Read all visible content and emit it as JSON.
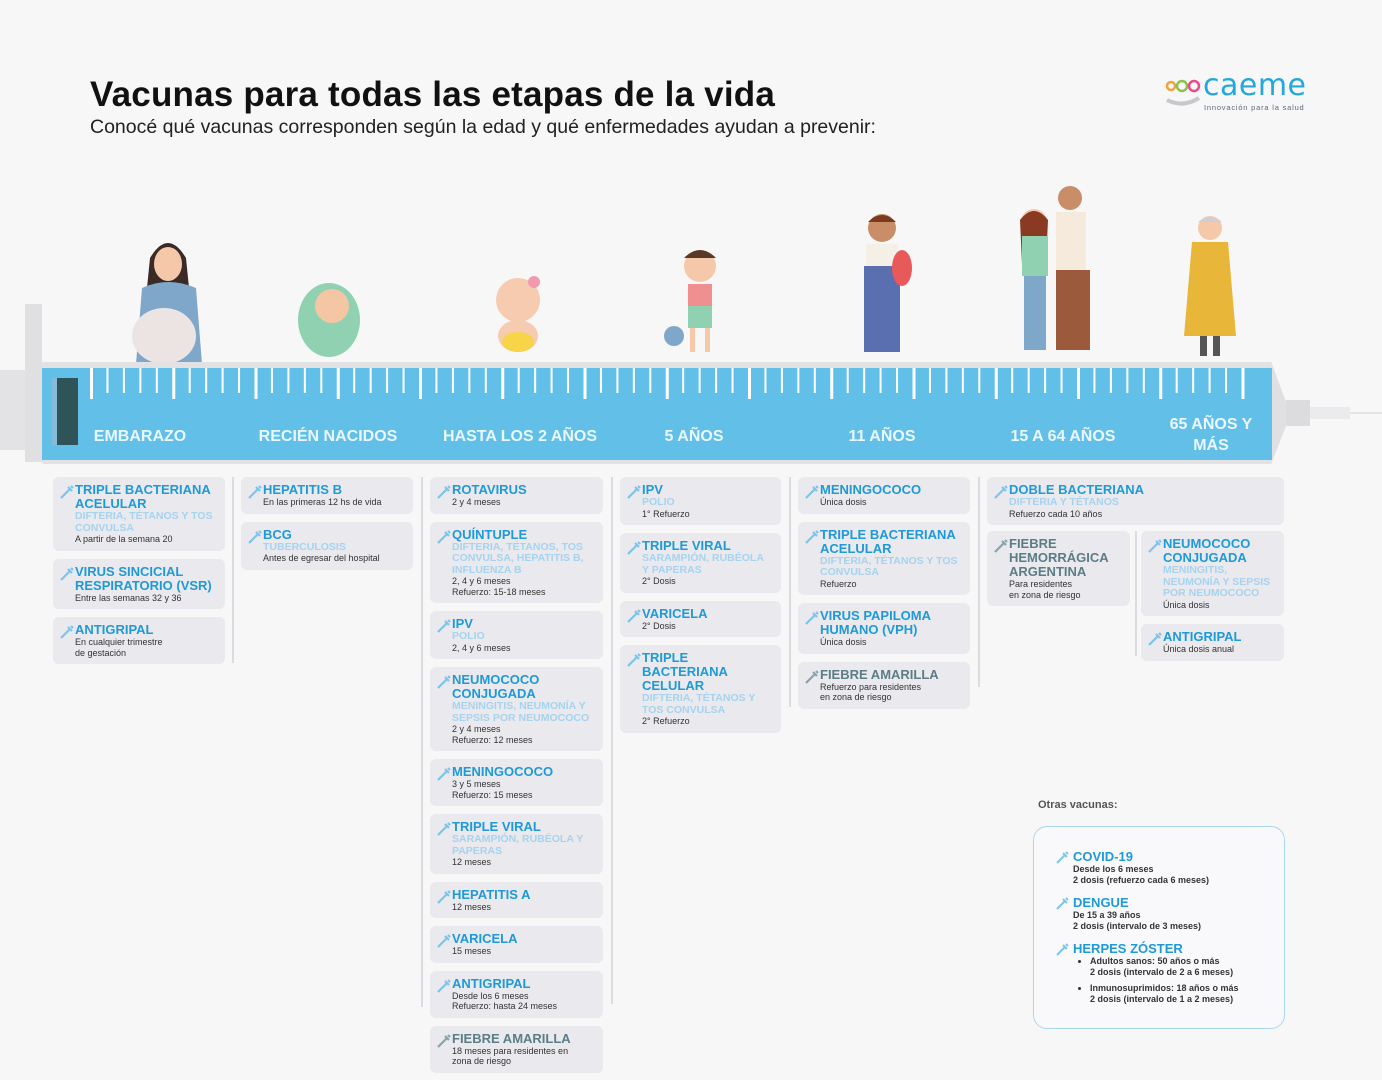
{
  "header": {
    "title": "Vacunas para todas las etapas de la vida",
    "subtitle": "Conocé qué vacunas corresponden según la edad y qué enfermedades ayudan a prevenir:"
  },
  "logo": {
    "text": "caeme",
    "tagline": "Innovación para la salud"
  },
  "colors": {
    "accent": "#1f9ad6",
    "syringe": "#62c0e8",
    "card": "#e9e9ee",
    "disease": "#a6d3ee",
    "muted_title": "#5c7d86"
  },
  "stages": [
    "EMBARAZO",
    "RECIÉN NACIDOS",
    "HASTA LOS 2 AÑOS",
    "5 AÑOS",
    "11 AÑOS",
    "15 A 64 AÑOS",
    "65 AÑOS Y MÁS"
  ],
  "columns": [
    {
      "cards": [
        {
          "title": "Triple bacteriana acelular",
          "disease": "Difteria, tétanos y tos convulsa",
          "detail": "A partir de la semana 20"
        },
        {
          "title": "Virus sincicial respiratorio (VSR)",
          "detail": "Entre las semanas 32 y 36"
        },
        {
          "title": "Antigripal",
          "detail": "En cualquier trimestre\nde gestación"
        }
      ]
    },
    {
      "cards": [
        {
          "title": "Hepatitis B",
          "detail": "En las primeras 12 hs de vida"
        },
        {
          "title": "BCG",
          "disease": "Tuberculosis",
          "detail": "Antes de egresar del hospital"
        }
      ]
    },
    {
      "cards": [
        {
          "title": "Rotavirus",
          "detail": "2 y 4 meses"
        },
        {
          "title": "Quíntuple",
          "disease": "Difteria, tétanos, tos convulsa, hepatitis B, influenza B",
          "detail": "2, 4 y 6 meses\nRefuerzo: 15-18 meses"
        },
        {
          "title": "IPV",
          "disease": "Polio",
          "detail": "2, 4 y 6 meses"
        },
        {
          "title": "Neumococo conjugada",
          "disease": "Meningitis, neumonía y sepsis por neumococo",
          "detail": "2 y 4 meses\nRefuerzo: 12 meses"
        },
        {
          "title": "Meningococo",
          "detail": "3 y 5 meses\nRefuerzo: 15 meses"
        },
        {
          "title": "Triple viral",
          "disease": "Sarampión, rubéola y paperas",
          "detail": "12 meses"
        },
        {
          "title": "Hepatitis A",
          "detail": "12 meses"
        },
        {
          "title": "Varicela",
          "detail": "15 meses"
        },
        {
          "title": "Antigripal",
          "detail": "Desde los 6 meses\nRefuerzo: hasta 24 meses"
        },
        {
          "title": "Fiebre amarilla",
          "detail": "18 meses para residentes en\nzona de riesgo",
          "muted": true
        }
      ]
    },
    {
      "cards": [
        {
          "title": "IPV",
          "disease": "Polio",
          "detail": "1° Refuerzo"
        },
        {
          "title": "Triple viral",
          "disease": "Sarampión, rubéola y paperas",
          "detail": "2° Dosis"
        },
        {
          "title": "Varicela",
          "detail": "2° Dosis"
        },
        {
          "title": "Triple bacteriana celular",
          "disease": "Difteria, tétanos y tos convulsa",
          "detail": "2° Refuerzo"
        }
      ]
    },
    {
      "cards": [
        {
          "title": "Meningococo",
          "detail": "Única dosis"
        },
        {
          "title": "Triple bacteriana acelular",
          "disease": "Difteria, tétanos y tos convulsa",
          "detail": "Refuerzo"
        },
        {
          "title": "Virus papiloma humano (VPH)",
          "detail": "Única dosis"
        },
        {
          "title": "Fiebre amarilla",
          "detail": "Refuerzo para residentes\nen zona de riesgo",
          "muted": true
        }
      ]
    },
    {
      "cards": [
        {
          "title": "Doble bacteriana",
          "disease": "Difteria y tétanos",
          "detail": "Refuerzo cada 10 años"
        }
      ]
    },
    {
      "cards": [
        {
          "title": "Fiebre hemorrágica argentina",
          "detail": "Para residentes\nen zona de riesgo",
          "muted": true
        }
      ]
    },
    {
      "cards": [
        {
          "title": "Neumococo conjugada",
          "disease": "Meningitis, neumonía y sepsis por neumococo",
          "detail": "Única dosis"
        },
        {
          "title": "Antigripal",
          "detail": "Única dosis anual"
        }
      ]
    }
  ],
  "others": {
    "label": "Otras vacunas:",
    "covid": {
      "title": "COVID-19",
      "detail": "Desde los 6 meses\n2 dosis (refuerzo cada 6 meses)"
    },
    "dengue": {
      "title": "DENGUE",
      "detail": "De 15 a 39 años\n2 dosis (intervalo de 3 meses)"
    },
    "herpes": {
      "title": "HERPES ZÓSTER",
      "items": [
        "Adultos sanos: 50 años o más\n2 dosis (intervalo de 2 a 6 meses)",
        "Inmunosuprimidos: 18 años o más\n2 dosis (intervalo de 1 a 2 meses)"
      ]
    }
  }
}
